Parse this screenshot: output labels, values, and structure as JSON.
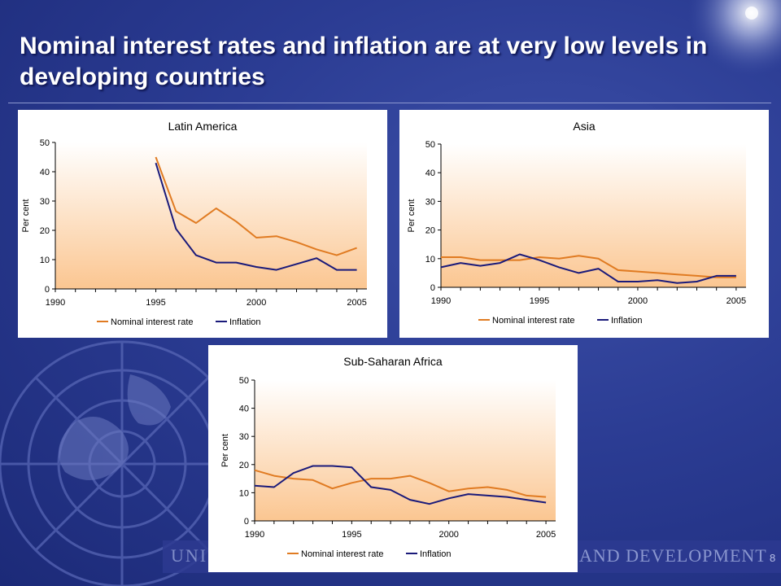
{
  "slide": {
    "title": "Nominal interest rates and inflation are at very low levels in developing countries",
    "footer_left": "UNI",
    "footer_right": "AND DEVELOPMENT",
    "page_number": "8"
  },
  "colors": {
    "nominal": "#e07b22",
    "inflation": "#1a1a7a",
    "plot_top": "#ffffff",
    "plot_bottom": "#fbc691"
  },
  "chart_data": [
    {
      "type": "line",
      "title": "Latin America",
      "ylabel": "Per cent",
      "xlim": [
        1990,
        2005.5
      ],
      "ylim": [
        0,
        50
      ],
      "xticks": [
        1990,
        1995,
        2000,
        2005
      ],
      "yticks": [
        0,
        10,
        20,
        30,
        40,
        50
      ],
      "grid": false,
      "legend": "bottom",
      "series": [
        {
          "name": "Nominal interest rate",
          "x": [
            1995,
            1996,
            1997,
            1998,
            1999,
            2000,
            2001,
            2002,
            2003,
            2004,
            2005
          ],
          "values": [
            45,
            26.5,
            22.5,
            27.5,
            23,
            17.5,
            18,
            16,
            13.5,
            11.5,
            14
          ]
        },
        {
          "name": "Inflation",
          "x": [
            1995,
            1996,
            1997,
            1998,
            1999,
            2000,
            2001,
            2002,
            2003,
            2004,
            2005
          ],
          "values": [
            43,
            20.5,
            11.5,
            9,
            9,
            7.5,
            6.5,
            8.5,
            10.5,
            6.5,
            6.5
          ]
        }
      ]
    },
    {
      "type": "line",
      "title": "Asia",
      "ylabel": "Per cent",
      "xlim": [
        1990,
        2005.5
      ],
      "ylim": [
        0,
        50
      ],
      "xticks": [
        1990,
        1995,
        2000,
        2005
      ],
      "yticks": [
        0,
        10,
        20,
        30,
        40,
        50
      ],
      "grid": false,
      "legend": "bottom",
      "series": [
        {
          "name": "Nominal interest rate",
          "x": [
            1990,
            1991,
            1992,
            1993,
            1994,
            1995,
            1996,
            1997,
            1998,
            1999,
            2000,
            2001,
            2002,
            2003,
            2004,
            2005
          ],
          "values": [
            10.5,
            10.5,
            9.5,
            9.5,
            9.5,
            10.5,
            10,
            11,
            10,
            6,
            5.5,
            5,
            4.5,
            4,
            3.5,
            3.5
          ]
        },
        {
          "name": "Inflation",
          "x": [
            1990,
            1991,
            1992,
            1993,
            1994,
            1995,
            1996,
            1997,
            1998,
            1999,
            2000,
            2001,
            2002,
            2003,
            2004,
            2005
          ],
          "values": [
            7,
            8.5,
            7.5,
            8.5,
            11.5,
            9.5,
            7,
            5,
            6.5,
            2,
            2,
            2.5,
            1.5,
            2,
            4,
            4
          ]
        }
      ]
    },
    {
      "type": "line",
      "title": "Sub-Saharan Africa",
      "ylabel": "Per cent",
      "xlim": [
        1990,
        2005.5
      ],
      "ylim": [
        0,
        50
      ],
      "xticks": [
        1990,
        1995,
        2000,
        2005
      ],
      "yticks": [
        0,
        10,
        20,
        30,
        40,
        50
      ],
      "grid": false,
      "legend": "bottom",
      "series": [
        {
          "name": "Nominal interest rate",
          "x": [
            1990,
            1991,
            1992,
            1993,
            1994,
            1995,
            1996,
            1997,
            1998,
            1999,
            2000,
            2001,
            2002,
            2003,
            2004,
            2005
          ],
          "values": [
            18,
            16,
            15,
            14.5,
            11.5,
            13.5,
            15,
            15,
            16,
            13.5,
            10.5,
            11.5,
            12,
            11,
            9,
            8.5
          ]
        },
        {
          "name": "Inflation",
          "x": [
            1990,
            1991,
            1992,
            1993,
            1994,
            1995,
            1996,
            1997,
            1998,
            1999,
            2000,
            2001,
            2002,
            2003,
            2004,
            2005
          ],
          "values": [
            12.5,
            12,
            17,
            19.5,
            19.5,
            19,
            12,
            11,
            7.5,
            6,
            8,
            9.5,
            9,
            8.5,
            7.5,
            6.5
          ]
        }
      ]
    }
  ]
}
